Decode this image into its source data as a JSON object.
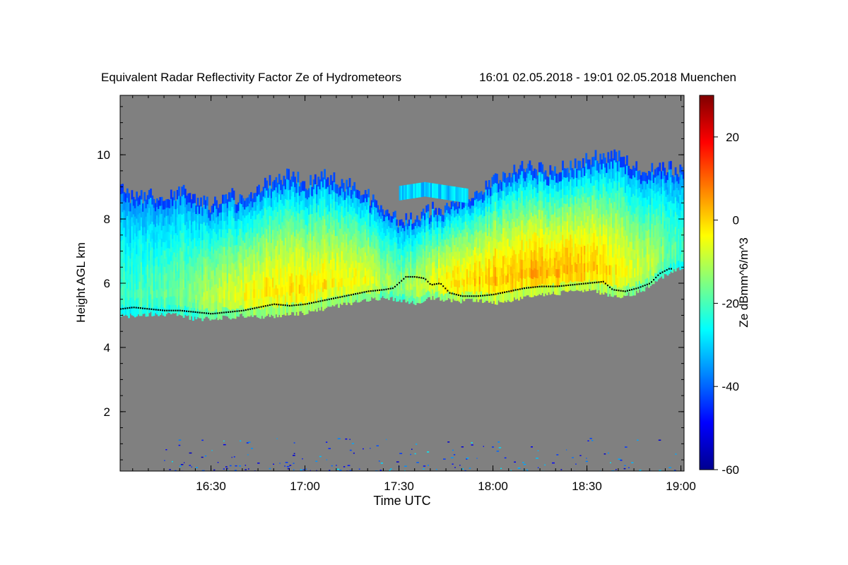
{
  "chart_data": {
    "type": "heatmap",
    "title": "Equivalent Radar Reflectivity Factor Ze of Hydrometeors",
    "time_range_label": "16:01 02.05.2018 - 19:01 02.05.2018 Muenchen",
    "xlabel": "Time UTC",
    "ylabel": "Height AGL km",
    "colorbar_label": "Ze dBmm^6/m^3",
    "x_ticks": [
      "16:30",
      "17:00",
      "17:30",
      "18:00",
      "18:30",
      "19:00"
    ],
    "x_range_minutes_utc": [
      961,
      1141
    ],
    "x_tick_minutes_utc": [
      990,
      1020,
      1050,
      1080,
      1110,
      1140
    ],
    "y_ticks": [
      "2",
      "4",
      "6",
      "8",
      "10"
    ],
    "y_tick_values": [
      2,
      4,
      6,
      8,
      10
    ],
    "ylim": [
      0.15,
      11.85
    ],
    "colorbar_ticks": [
      "-60",
      "-40",
      "-20",
      "0",
      "20"
    ],
    "colorbar_tick_values": [
      -60,
      -40,
      -20,
      0,
      20
    ],
    "color_range_dbz": [
      -60,
      30
    ],
    "colormap": [
      "#00008f",
      "#0000ff",
      "#0080ff",
      "#00ffff",
      "#80ff80",
      "#ffff00",
      "#ff8000",
      "#ff0000",
      "#800000"
    ],
    "background_color": "#808080",
    "cloud_base_km": [
      [
        961,
        5.2
      ],
      [
        965,
        5.25
      ],
      [
        970,
        5.2
      ],
      [
        975,
        5.15
      ],
      [
        980,
        5.15
      ],
      [
        985,
        5.1
      ],
      [
        990,
        5.05
      ],
      [
        995,
        5.1
      ],
      [
        1000,
        5.15
      ],
      [
        1005,
        5.25
      ],
      [
        1010,
        5.35
      ],
      [
        1015,
        5.3
      ],
      [
        1020,
        5.35
      ],
      [
        1025,
        5.45
      ],
      [
        1030,
        5.55
      ],
      [
        1035,
        5.65
      ],
      [
        1040,
        5.75
      ],
      [
        1045,
        5.8
      ],
      [
        1048,
        5.85
      ],
      [
        1052,
        6.2
      ],
      [
        1055,
        6.2
      ],
      [
        1058,
        6.15
      ],
      [
        1060,
        5.95
      ],
      [
        1063,
        6.0
      ],
      [
        1066,
        5.7
      ],
      [
        1070,
        5.6
      ],
      [
        1075,
        5.6
      ],
      [
        1080,
        5.65
      ],
      [
        1085,
        5.75
      ],
      [
        1090,
        5.85
      ],
      [
        1095,
        5.9
      ],
      [
        1100,
        5.9
      ],
      [
        1105,
        5.95
      ],
      [
        1110,
        6.0
      ],
      [
        1115,
        6.05
      ],
      [
        1118,
        5.8
      ],
      [
        1122,
        5.75
      ],
      [
        1126,
        5.85
      ],
      [
        1130,
        6.0
      ],
      [
        1133,
        6.3
      ],
      [
        1136,
        6.45
      ]
    ],
    "reflectivity_top_km": [
      [
        961,
        9.0
      ],
      [
        965,
        8.6
      ],
      [
        970,
        8.8
      ],
      [
        975,
        8.6
      ],
      [
        980,
        8.9
      ],
      [
        985,
        8.6
      ],
      [
        990,
        8.4
      ],
      [
        995,
        8.8
      ],
      [
        1000,
        8.6
      ],
      [
        1005,
        9.0
      ],
      [
        1010,
        9.2
      ],
      [
        1015,
        9.4
      ],
      [
        1020,
        9.1
      ],
      [
        1025,
        9.4
      ],
      [
        1030,
        9.2
      ],
      [
        1035,
        9.0
      ],
      [
        1040,
        8.7
      ],
      [
        1045,
        8.3
      ],
      [
        1050,
        7.9
      ],
      [
        1055,
        8.0
      ],
      [
        1060,
        8.3
      ],
      [
        1065,
        8.3
      ],
      [
        1070,
        8.6
      ],
      [
        1075,
        8.9
      ],
      [
        1080,
        9.2
      ],
      [
        1085,
        9.5
      ],
      [
        1090,
        9.6
      ],
      [
        1095,
        9.6
      ],
      [
        1100,
        9.5
      ],
      [
        1105,
        9.7
      ],
      [
        1110,
        9.9
      ],
      [
        1115,
        10.0
      ],
      [
        1120,
        9.9
      ],
      [
        1125,
        9.6
      ],
      [
        1130,
        9.5
      ],
      [
        1135,
        9.6
      ],
      [
        1140,
        9.5
      ]
    ],
    "reflectivity_bottom_km": [
      [
        961,
        5.0
      ],
      [
        965,
        5.0
      ],
      [
        970,
        5.05
      ],
      [
        975,
        5.05
      ],
      [
        980,
        5.0
      ],
      [
        985,
        4.9
      ],
      [
        990,
        4.9
      ],
      [
        995,
        4.95
      ],
      [
        1000,
        5.0
      ],
      [
        1005,
        4.95
      ],
      [
        1010,
        5.0
      ],
      [
        1015,
        5.05
      ],
      [
        1020,
        5.1
      ],
      [
        1025,
        5.2
      ],
      [
        1030,
        5.3
      ],
      [
        1035,
        5.4
      ],
      [
        1040,
        5.5
      ],
      [
        1045,
        5.55
      ],
      [
        1050,
        5.5
      ],
      [
        1055,
        5.4
      ],
      [
        1060,
        5.55
      ],
      [
        1065,
        5.5
      ],
      [
        1070,
        5.45
      ],
      [
        1075,
        5.5
      ],
      [
        1080,
        5.4
      ],
      [
        1085,
        5.45
      ],
      [
        1090,
        5.6
      ],
      [
        1095,
        5.65
      ],
      [
        1100,
        5.7
      ],
      [
        1105,
        5.75
      ],
      [
        1110,
        5.8
      ],
      [
        1115,
        5.7
      ],
      [
        1120,
        5.6
      ],
      [
        1125,
        5.7
      ],
      [
        1130,
        5.9
      ],
      [
        1135,
        6.3
      ],
      [
        1140,
        6.5
      ]
    ],
    "core_max_dbz_by_minute": [
      [
        961,
        -22
      ],
      [
        975,
        -18
      ],
      [
        990,
        -10
      ],
      [
        1005,
        -3
      ],
      [
        1020,
        -2
      ],
      [
        1035,
        -4
      ],
      [
        1050,
        -14
      ],
      [
        1065,
        -2
      ],
      [
        1080,
        2
      ],
      [
        1095,
        3
      ],
      [
        1110,
        2
      ],
      [
        1125,
        -6
      ],
      [
        1140,
        -20
      ]
    ],
    "near_ground_noise_km": [
      0.15,
      1.2
    ]
  }
}
